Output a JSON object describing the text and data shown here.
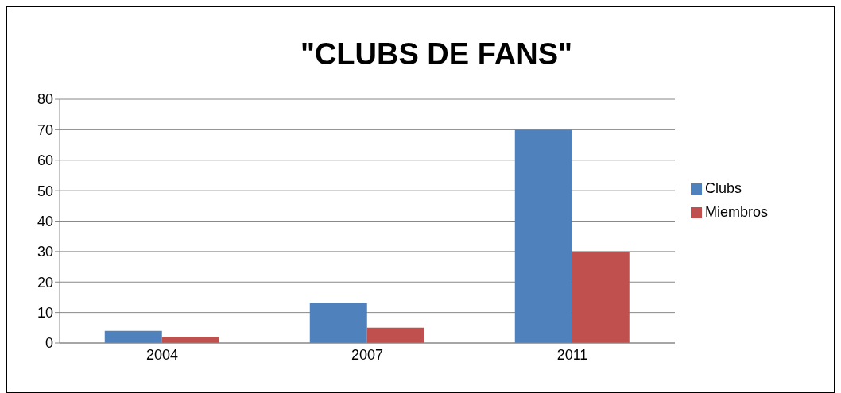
{
  "chart_data": {
    "type": "bar",
    "title": "\"CLUBS DE FANS\"",
    "categories": [
      "2004",
      "2007",
      "2011"
    ],
    "series": [
      {
        "name": "Clubs",
        "color": "#4f81bd",
        "values": [
          4,
          13,
          70
        ]
      },
      {
        "name": "Miembros",
        "color": "#c0504d",
        "values": [
          2,
          5,
          30
        ]
      }
    ],
    "ylim": [
      0,
      80
    ],
    "yticks": [
      0,
      10,
      20,
      30,
      40,
      50,
      60,
      70,
      80
    ],
    "grid": "y",
    "legend": "right"
  }
}
